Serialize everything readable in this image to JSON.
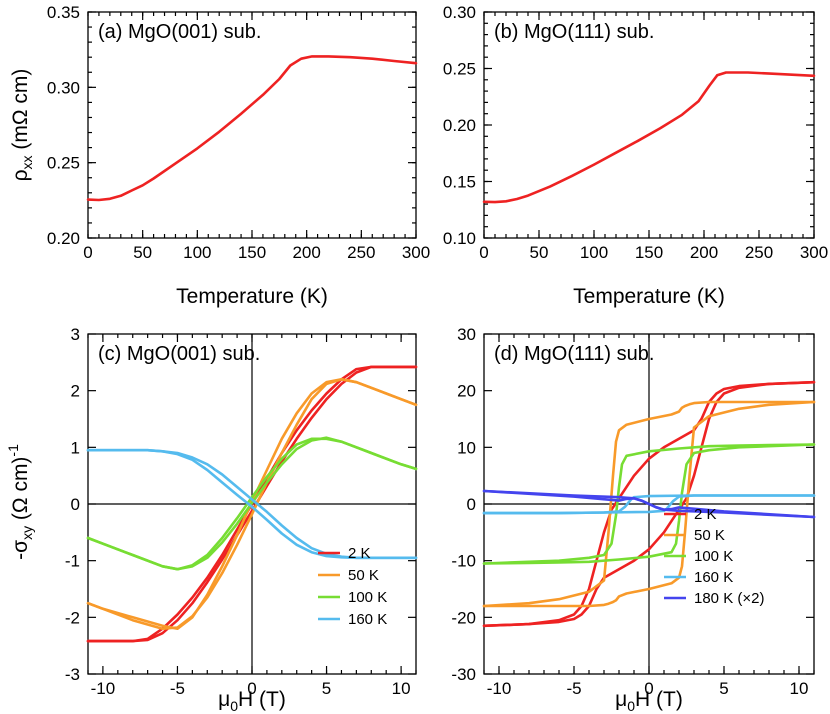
{
  "chart_data": [
    {
      "id": "a",
      "type": "line",
      "title": "(a) MgO(001) sub.",
      "xlabel": "Temperature (K)",
      "ylabel_main": "ρ",
      "ylabel_sub": "xx",
      "ylabel_rest": " (mΩ cm)",
      "xlim": [
        0,
        300
      ],
      "ylim": [
        0.2,
        0.35
      ],
      "xticks": [
        "0",
        "50",
        "100",
        "150",
        "200",
        "250",
        "300"
      ],
      "yticks": [
        "0.20",
        "0.25",
        "0.30",
        "0.35"
      ],
      "series": [
        {
          "name": "rho_xx",
          "color": "#ee2222",
          "x": [
            0,
            10,
            20,
            30,
            40,
            50,
            60,
            80,
            100,
            120,
            140,
            160,
            175,
            185,
            195,
            205,
            220,
            240,
            260,
            280,
            300
          ],
          "y": [
            0.2255,
            0.2252,
            0.226,
            0.228,
            0.2315,
            0.235,
            0.2395,
            0.2495,
            0.2595,
            0.2705,
            0.2825,
            0.295,
            0.3055,
            0.3145,
            0.319,
            0.3205,
            0.3205,
            0.32,
            0.319,
            0.3175,
            0.316
          ]
        }
      ]
    },
    {
      "id": "b",
      "type": "line",
      "title": "(b) MgO(111) sub.",
      "xlabel": "Temperature (K)",
      "xlim": [
        0,
        300
      ],
      "ylim": [
        0.1,
        0.3
      ],
      "xticks": [
        "0",
        "50",
        "100",
        "150",
        "200",
        "250",
        "300"
      ],
      "yticks": [
        "0.10",
        "0.15",
        "0.20",
        "0.25",
        "0.30"
      ],
      "series": [
        {
          "name": "rho_xx",
          "color": "#ee2222",
          "x": [
            0,
            10,
            20,
            30,
            40,
            60,
            80,
            100,
            120,
            140,
            160,
            180,
            195,
            205,
            212,
            220,
            240,
            260,
            280,
            300
          ],
          "y": [
            0.132,
            0.1318,
            0.1325,
            0.1345,
            0.1375,
            0.1455,
            0.155,
            0.165,
            0.1755,
            0.186,
            0.197,
            0.209,
            0.221,
            0.235,
            0.244,
            0.2465,
            0.2465,
            0.2455,
            0.2445,
            0.2435
          ]
        }
      ]
    },
    {
      "id": "c",
      "type": "line",
      "title": "(c) MgO(001) sub.",
      "xlabel_main": "μ",
      "xlabel_sub": "0",
      "xlabel_rest": "H (T)",
      "ylabel_main": "-σ",
      "ylabel_sub": "xy",
      "ylabel_rest": " (Ω cm)",
      "ylabel_sup": "-1",
      "xlim": [
        -11,
        11
      ],
      "ylim": [
        -3,
        3
      ],
      "xticks": [
        "-10",
        "-5",
        "0",
        "5",
        "10"
      ],
      "yticks": [
        "-3",
        "-2",
        "-1",
        "0",
        "1",
        "2",
        "3"
      ],
      "legend": [
        "2 K",
        "50 K",
        "100 K",
        "160 K"
      ],
      "series": [
        {
          "name": "2 K",
          "color": "#ee2222",
          "x": [
            -11,
            -10,
            -8,
            -7,
            -6,
            -5,
            -4,
            -3,
            -2,
            -1,
            0,
            1,
            2,
            3,
            4,
            5,
            6,
            7,
            8,
            10,
            11
          ],
          "y": [
            -2.42,
            -2.42,
            -2.42,
            -2.38,
            -2.2,
            -1.95,
            -1.65,
            -1.3,
            -0.9,
            -0.45,
            0.0,
            0.45,
            0.9,
            1.3,
            1.65,
            1.95,
            2.2,
            2.38,
            2.42,
            2.42,
            2.42
          ],
          "x2": [
            11,
            10,
            8,
            7,
            6,
            5,
            4,
            3,
            2,
            1,
            0,
            -1,
            -2,
            -3,
            -4,
            -5,
            -6,
            -7,
            -8,
            -10,
            -11
          ],
          "y2": [
            2.42,
            2.42,
            2.42,
            2.32,
            2.12,
            1.85,
            1.52,
            1.15,
            0.75,
            0.32,
            -0.12,
            -0.55,
            -0.98,
            -1.38,
            -1.75,
            -2.05,
            -2.28,
            -2.4,
            -2.42,
            -2.42,
            -2.42
          ]
        },
        {
          "name": "50 K",
          "color": "#f89a2a",
          "x": [
            -11,
            -10,
            -8,
            -6,
            -5,
            -4,
            -3,
            -2,
            -1,
            0,
            1,
            2,
            3,
            4,
            5,
            6,
            7,
            8,
            9,
            10,
            11
          ],
          "y": [
            -1.75,
            -1.85,
            -2.0,
            -2.15,
            -2.2,
            -2.0,
            -1.6,
            -1.1,
            -0.55,
            0.05,
            0.6,
            1.15,
            1.6,
            1.95,
            2.15,
            2.2,
            2.15,
            2.05,
            1.95,
            1.85,
            1.75
          ],
          "x2": [
            11,
            10,
            8,
            7,
            6,
            5,
            4,
            3,
            2,
            1,
            0,
            -1,
            -2,
            -3,
            -4,
            -5,
            -6,
            -8,
            -10,
            -11
          ],
          "y2": [
            1.75,
            1.85,
            2.05,
            2.15,
            2.2,
            2.12,
            1.85,
            1.4,
            0.9,
            0.38,
            -0.18,
            -0.72,
            -1.22,
            -1.65,
            -1.98,
            -2.18,
            -2.2,
            -2.05,
            -1.85,
            -1.75
          ]
        },
        {
          "name": "100 K",
          "color": "#77dd33",
          "x": [
            -11,
            -10,
            -8,
            -6,
            -5,
            -4,
            -3,
            -2,
            -1,
            0,
            1,
            2,
            3,
            4,
            5,
            6,
            7,
            8,
            9,
            10,
            11
          ],
          "y": [
            -0.6,
            -0.7,
            -0.9,
            -1.1,
            -1.15,
            -1.1,
            -0.95,
            -0.68,
            -0.35,
            0.02,
            0.38,
            0.7,
            0.97,
            1.12,
            1.17,
            1.1,
            1.0,
            0.9,
            0.8,
            0.7,
            0.62
          ],
          "x2": [
            11,
            10,
            8,
            6,
            5,
            4,
            3,
            2,
            1,
            0,
            -1,
            -2,
            -3,
            -4,
            -5,
            -6,
            -8,
            -10,
            -11
          ],
          "y2": [
            0.62,
            0.7,
            0.9,
            1.1,
            1.15,
            1.15,
            1.05,
            0.8,
            0.48,
            0.12,
            -0.25,
            -0.6,
            -0.9,
            -1.08,
            -1.15,
            -1.1,
            -0.9,
            -0.7,
            -0.6
          ]
        },
        {
          "name": "160 K",
          "color": "#55bbee",
          "x": [
            -11,
            -9,
            -7,
            -6,
            -5,
            -4,
            -3,
            -2,
            -1,
            0,
            1,
            2,
            3,
            4,
            5,
            6,
            7,
            9,
            11
          ],
          "y": [
            0.95,
            0.95,
            0.95,
            0.93,
            0.88,
            0.78,
            0.6,
            0.38,
            0.16,
            -0.05,
            -0.28,
            -0.52,
            -0.72,
            -0.85,
            -0.92,
            -0.94,
            -0.95,
            -0.95,
            -0.95
          ],
          "x2": [
            11,
            9,
            7,
            6,
            5,
            4,
            3,
            2,
            1,
            0,
            -1,
            -2,
            -3,
            -4,
            -5,
            -6,
            -7,
            -9,
            -11
          ],
          "y2": [
            -0.95,
            -0.95,
            -0.95,
            -0.93,
            -0.88,
            -0.78,
            -0.6,
            -0.38,
            -0.14,
            0.08,
            0.3,
            0.52,
            0.7,
            0.82,
            0.9,
            0.93,
            0.95,
            0.95,
            0.95
          ]
        }
      ]
    },
    {
      "id": "d",
      "type": "line",
      "title": "(d) MgO(111) sub.",
      "xlabel_main": "μ",
      "xlabel_sub": "0",
      "xlabel_rest": "H (T)",
      "xlim": [
        -11,
        11
      ],
      "ylim": [
        -30,
        30
      ],
      "xticks": [
        "-10",
        "-5",
        "0",
        "5",
        "10"
      ],
      "yticks": [
        "-30",
        "-20",
        "-10",
        "0",
        "10",
        "20",
        "30"
      ],
      "legend": [
        "2 K",
        "50 K",
        "100 K",
        "160 K",
        "180 K (×2)"
      ],
      "series": [
        {
          "name": "2 K",
          "color": "#ee2222",
          "x": [
            -11,
            -8,
            -6,
            -5,
            -4.5,
            -4,
            -3.5,
            -3,
            -2.5,
            -2,
            -1,
            0,
            1,
            2,
            3,
            3.5,
            4,
            4.5,
            5,
            6,
            8,
            11
          ],
          "y": [
            -21.5,
            -21.2,
            -20.5,
            -19.5,
            -18,
            -15,
            -10,
            -5,
            -1,
            1,
            5,
            8,
            10,
            11.5,
            13,
            15,
            18,
            19.5,
            20.3,
            20.8,
            21.2,
            21.5
          ],
          "x2": [
            11,
            8,
            6,
            5,
            4.5,
            4,
            3.5,
            3,
            2.5,
            2,
            1,
            0,
            -1,
            -2,
            -3,
            -3.5,
            -4,
            -4.5,
            -5,
            -6,
            -8,
            -11
          ],
          "y2": [
            21.5,
            21.2,
            20.5,
            19.5,
            18,
            15,
            10,
            5,
            1,
            -1,
            -5,
            -8,
            -10,
            -11.5,
            -13,
            -15,
            -18,
            -19.5,
            -20.3,
            -20.8,
            -21.2,
            -21.5
          ]
        },
        {
          "name": "50 K",
          "color": "#f89a2a",
          "x": [
            -11,
            -8,
            -6,
            -4,
            -3,
            -2.7,
            -2.4,
            -2.2,
            -2,
            -1.5,
            0,
            1.5,
            2,
            2.2,
            2.4,
            2.7,
            3,
            4,
            6,
            8,
            11
          ],
          "y": [
            -18,
            -17.5,
            -16.8,
            -15.5,
            -13.5,
            -5,
            5,
            11,
            13,
            14,
            15,
            15.8,
            16.3,
            17,
            17.3,
            17.6,
            17.8,
            18,
            18,
            18,
            18
          ],
          "x2": [
            11,
            8,
            6,
            4,
            3,
            2.7,
            2.4,
            2.2,
            2,
            1.5,
            0,
            -1.5,
            -2,
            -2.2,
            -2.4,
            -2.7,
            -3,
            -4,
            -6,
            -8,
            -11
          ],
          "y2": [
            18,
            17.5,
            16.8,
            15.5,
            13.5,
            5,
            -5,
            -11,
            -13,
            -14,
            -15,
            -15.8,
            -16.3,
            -17,
            -17.3,
            -17.6,
            -17.8,
            -18,
            -18,
            -18,
            -18
          ]
        },
        {
          "name": "100 K",
          "color": "#77dd33",
          "x": [
            -11,
            -6,
            -4,
            -3,
            -2.5,
            -2.2,
            -2,
            -1.8,
            -1.5,
            0,
            2,
            4,
            6,
            8,
            11
          ],
          "y": [
            -10.5,
            -10,
            -9.5,
            -9,
            -7,
            -2,
            3,
            7,
            8.5,
            9.3,
            9.8,
            10.2,
            10.3,
            10.4,
            10.5
          ],
          "x2": [
            11,
            6,
            4,
            3,
            2.5,
            2.2,
            2,
            1.8,
            1.5,
            0,
            -2,
            -4,
            -6,
            -8,
            -11
          ],
          "y2": [
            10.5,
            10,
            9.5,
            9,
            7,
            2,
            -3,
            -7,
            -8.5,
            -9.3,
            -9.8,
            -10.2,
            -10.3,
            -10.4,
            -10.5
          ]
        },
        {
          "name": "160 K",
          "color": "#55bbee",
          "x": [
            -11,
            -6,
            -3,
            -2,
            -1.6,
            -1.2,
            -1,
            0,
            3,
            6,
            11
          ],
          "y": [
            -1.6,
            -1.6,
            -1.5,
            -1.3,
            -0.5,
            0.8,
            1.2,
            1.4,
            1.5,
            1.5,
            1.5
          ],
          "x2": [
            11,
            6,
            3,
            2,
            1.6,
            1.2,
            1,
            0,
            -3,
            -6,
            -11
          ],
          "y2": [
            1.5,
            1.5,
            1.5,
            1.3,
            0.5,
            -0.8,
            -1.2,
            -1.4,
            -1.5,
            -1.6,
            -1.6
          ]
        },
        {
          "name": "180 K (×2)",
          "color": "#4444ee",
          "x": [
            -11,
            -5,
            -2,
            -1.5,
            -1,
            -0.5,
            0,
            0.5,
            1,
            1.5,
            2,
            5,
            11
          ],
          "y": [
            2.3,
            1.5,
            1.2,
            1.1,
            1.0,
            0.6,
            0.0,
            -0.6,
            -1.0,
            -0.9,
            -0.6,
            -1.3,
            -2.3
          ],
          "x2": [
            11,
            5,
            2,
            1.5,
            1,
            0.5,
            0,
            -0.5,
            -1,
            -1.5,
            -2,
            -5,
            -11
          ],
          "y2": [
            -2.3,
            -1.5,
            -1.2,
            -1.1,
            -1.0,
            -0.6,
            0.0,
            0.6,
            1.0,
            0.9,
            0.6,
            1.3,
            2.3
          ]
        }
      ]
    }
  ]
}
